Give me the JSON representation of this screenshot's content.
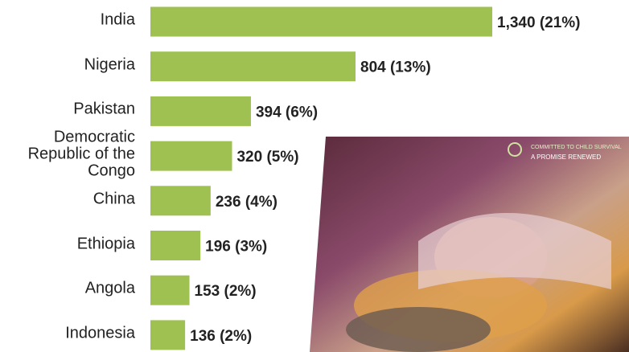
{
  "chart_data": {
    "type": "barh",
    "categories": [
      "India",
      "Nigeria",
      "Pakistan",
      "Democratic Republic of the Congo",
      "China",
      "Ethiopia",
      "Angola",
      "Indonesia"
    ],
    "values": [
      1340,
      804,
      394,
      320,
      236,
      196,
      153,
      136
    ],
    "value_labels": [
      "1,340 (21%)",
      "804 (13%)",
      "394 (6%)",
      "320 (5%)",
      "236 (4%)",
      "196 (3%)",
      "153 (2%)",
      "136 (2%)"
    ],
    "color": "#9ec152"
  },
  "photo_logo": [
    "COMMITTED TO CHILD SURVIVAL",
    "A PROMISE RENEWED"
  ]
}
